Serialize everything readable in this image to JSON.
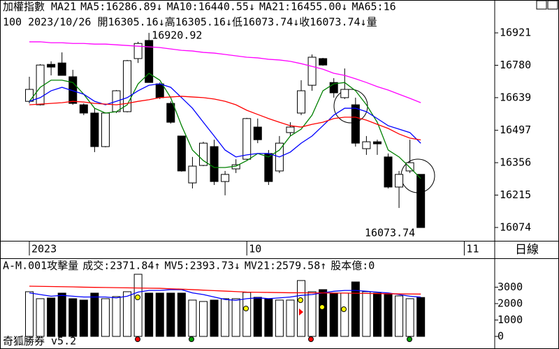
{
  "chart_data": [
    {
      "type": "candlestick",
      "header": [
        {
          "text": "加權指數 MA21",
          "color": "#000000"
        },
        {
          "text": "MA5:16286.89↓",
          "color": "#008000"
        },
        {
          "text": "MA10:16440.55↓",
          "color": "#0000ff"
        },
        {
          "text": "MA21:16455.00↓",
          "color": "#ff0000"
        },
        {
          "text": "MA65:16",
          "color": "#ff00ff"
        }
      ],
      "info": "100 2023/10/26 開16305.16↓高16305.16↓低16073.74↓收16073.74↓量",
      "xlim": [
        -2.7,
        42.8
      ],
      "xticks": [
        {
          "value": 0,
          "label": "2023"
        },
        {
          "value": 20,
          "label": "10"
        },
        {
          "value": 40,
          "label": "11"
        }
      ],
      "ylim": [
        16016,
        17064
      ],
      "yticks": [
        16074,
        16215,
        16356,
        16497,
        16639,
        16780,
        16921
      ],
      "up_color": "#ffffff",
      "down_color": "#000000",
      "open": [
        16623,
        16608,
        16784,
        16790,
        16730,
        16608,
        16572,
        16426,
        16578,
        16578,
        16809,
        16888,
        16699,
        16614,
        16472,
        16268,
        16344,
        16426,
        16274,
        16329,
        16371,
        16511,
        16396,
        16320,
        16487,
        16572,
        16693,
        16809,
        16705,
        16639,
        16608,
        16417,
        16447,
        16381,
        16250,
        16320,
        16305.16
      ],
      "high": [
        16730,
        16785,
        16797,
        16836,
        16760,
        16614,
        16593,
        16575,
        16672,
        16803,
        16882,
        16920.92,
        16705,
        16623,
        16472,
        16381,
        16447,
        16456,
        16320,
        16371,
        16551,
        16548,
        16411,
        16472,
        16532,
        16715,
        16827,
        16812,
        16724,
        16766,
        16639,
        16472,
        16456,
        16396,
        16320,
        16456,
        16305.16
      ],
      "low": [
        16614,
        16605,
        16736,
        16736,
        16608,
        16563,
        16402,
        16423,
        16572,
        16575,
        16790,
        16705,
        16633,
        16526,
        16317,
        16244,
        16341,
        16259,
        16214,
        16311,
        16368,
        16441,
        16259,
        16311,
        16472,
        16563,
        16669,
        16778,
        16639,
        16633,
        16426,
        16390,
        16390,
        16244,
        16159,
        16311,
        16073.74
      ],
      "close": [
        16675,
        16781,
        16772,
        16736,
        16614,
        16572,
        16426,
        16572,
        16669,
        16800,
        16875,
        16705,
        16639,
        16532,
        16320,
        16341,
        16441,
        16274,
        16305,
        16347,
        16548,
        16456,
        16274,
        16441,
        16511,
        16669,
        16815,
        16781,
        16660,
        16675,
        16441,
        16447,
        16438,
        16250,
        16305,
        16356,
        16073.74
      ],
      "series": [
        {
          "name": "MA5",
          "color": "#008000",
          "values": [
            16623,
            16684,
            16715,
            16715,
            16705,
            16654,
            16593,
            16572,
            16578,
            16608,
            16699,
            16745,
            16715,
            16639,
            16517,
            16411,
            16365,
            16335,
            16335,
            16341,
            16365,
            16396,
            16381,
            16411,
            16472,
            16502,
            16563,
            16669,
            16699,
            16705,
            16669,
            16608,
            16532,
            16411,
            16381,
            16335,
            16286.89
          ]
        },
        {
          "name": "MA10",
          "color": "#0000ff",
          "values": [
            16623,
            16639,
            16669,
            16684,
            16669,
            16654,
            16623,
            16608,
            16623,
            16639,
            16669,
            16693,
            16699,
            16684,
            16639,
            16593,
            16532,
            16472,
            16411,
            16381,
            16390,
            16396,
            16396,
            16381,
            16402,
            16441,
            16472,
            16517,
            16563,
            16593,
            16593,
            16578,
            16548,
            16517,
            16502,
            16487,
            16440.55
          ]
        },
        {
          "name": "MA21",
          "color": "#ff0000",
          "values": [
            16608,
            16611,
            16614,
            16617,
            16623,
            16620,
            16614,
            16611,
            16608,
            16614,
            16623,
            16630,
            16639,
            16642,
            16645,
            16642,
            16639,
            16633,
            16623,
            16608,
            16584,
            16566,
            16548,
            16532,
            16517,
            16511,
            16523,
            16532,
            16548,
            16554,
            16554,
            16541,
            16523,
            16505,
            16481,
            16463,
            16455.0
          ]
        },
        {
          "name": "MA65",
          "color": "#ff00ff",
          "values": [
            16882,
            16882,
            16878,
            16878,
            16875,
            16875,
            16872,
            16872,
            16869,
            16866,
            16863,
            16860,
            16857,
            16851,
            16845,
            16842,
            16836,
            16833,
            16827,
            16821,
            16815,
            16812,
            16806,
            16803,
            16797,
            16787,
            16775,
            16763,
            16745,
            16736,
            16721,
            16705,
            16687,
            16672,
            16654,
            16636,
            16617
          ]
        }
      ]
    },
    {
      "type": "bar",
      "header": [
        {
          "text": "A-M.001攻擊量",
          "color": "#000000"
        },
        {
          "text": "成交:2371.84↑",
          "color": "#008000"
        },
        {
          "text": "MV5:2393.73↓",
          "color": "#0000ff"
        },
        {
          "text": "MV21:2579.58↑",
          "color": "#ff0000"
        },
        {
          "text": "股本億:0",
          "color": "#ff00ff"
        }
      ],
      "xlim": [
        -2.7,
        42.8
      ],
      "ylim": [
        -640,
        4720
      ],
      "yticks": [
        0,
        1000,
        2000,
        3000
      ],
      "values": [
        2723,
        2298,
        2340,
        2638,
        2298,
        2213,
        2638,
        2298,
        2426,
        2723,
        3787,
        2638,
        2638,
        2638,
        2638,
        2213,
        2128,
        2213,
        2298,
        2298,
        2681,
        2383,
        2298,
        2213,
        2213,
        3404,
        2723,
        2851,
        2638,
        2638,
        3319,
        2723,
        2638,
        2553,
        2468,
        2298,
        2371.84
      ],
      "series": [
        {
          "name": "MV5",
          "color": "#0000ff",
          "values": [
            2650,
            2550,
            2450,
            2500,
            2450,
            2400,
            2400,
            2400,
            2350,
            2450,
            2700,
            2800,
            2800,
            2850,
            2850,
            2650,
            2550,
            2400,
            2250,
            2200,
            2300,
            2350,
            2300,
            2350,
            2400,
            2500,
            2550,
            2650,
            2750,
            2800,
            2800,
            2750,
            2700,
            2650,
            2550,
            2450,
            2393.73
          ]
        },
        {
          "name": "MV21",
          "color": "#ff0000",
          "values": [
            3060,
            3050,
            3040,
            3030,
            3020,
            3000,
            2990,
            2980,
            2970,
            2960,
            2950,
            2940,
            2930,
            2900,
            2880,
            2850,
            2820,
            2790,
            2760,
            2730,
            2700,
            2690,
            2680,
            2670,
            2660,
            2660,
            2650,
            2650,
            2640,
            2640,
            2630,
            2620,
            2610,
            2600,
            2590,
            2585,
            2579.58
          ]
        }
      ]
    }
  ],
  "period": "日線",
  "footer": "奇狐勝券 v5.2"
}
